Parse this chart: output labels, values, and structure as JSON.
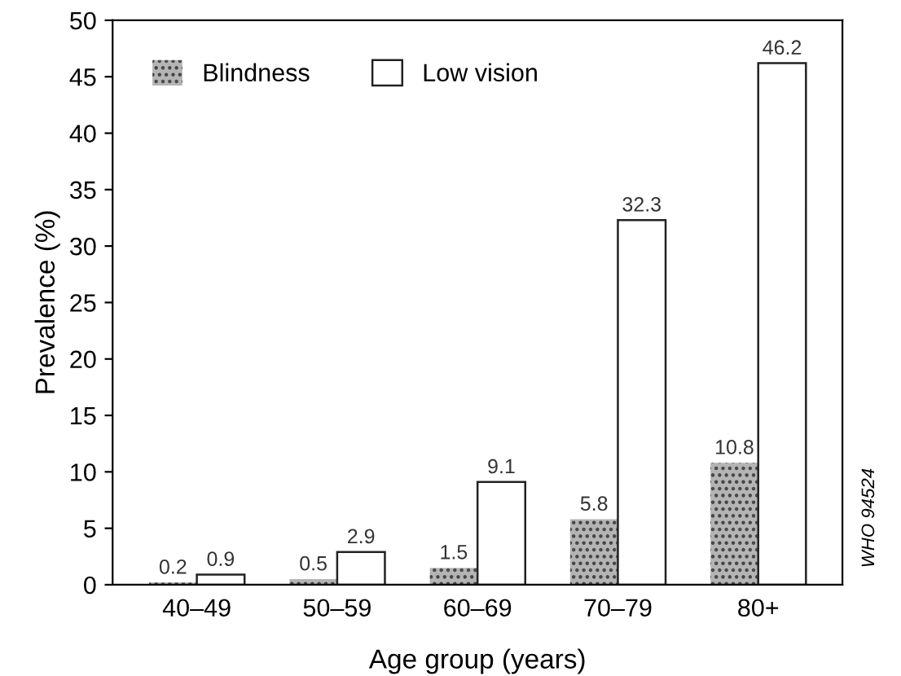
{
  "chart_data": {
    "type": "bar",
    "xlabel": "Age group (years)",
    "ylabel": "Prevalence (%)",
    "categories": [
      "40–49",
      "50–59",
      "60–69",
      "70–79",
      "80+"
    ],
    "series": [
      {
        "name": "Blindness",
        "color": "#b4b4b4",
        "values": [
          0.2,
          0.5,
          1.5,
          5.8,
          10.8
        ]
      },
      {
        "name": "Low vision",
        "color": "#ffffff",
        "values": [
          0.9,
          2.9,
          9.1,
          32.3,
          46.2
        ]
      }
    ],
    "ylim": [
      0,
      50
    ],
    "yticks": [
      0,
      5,
      10,
      15,
      20,
      25,
      30,
      35,
      40,
      45,
      50
    ],
    "data_labels": true,
    "legend": "top left",
    "grid": false,
    "annotations": [
      "WHO 94524"
    ]
  }
}
